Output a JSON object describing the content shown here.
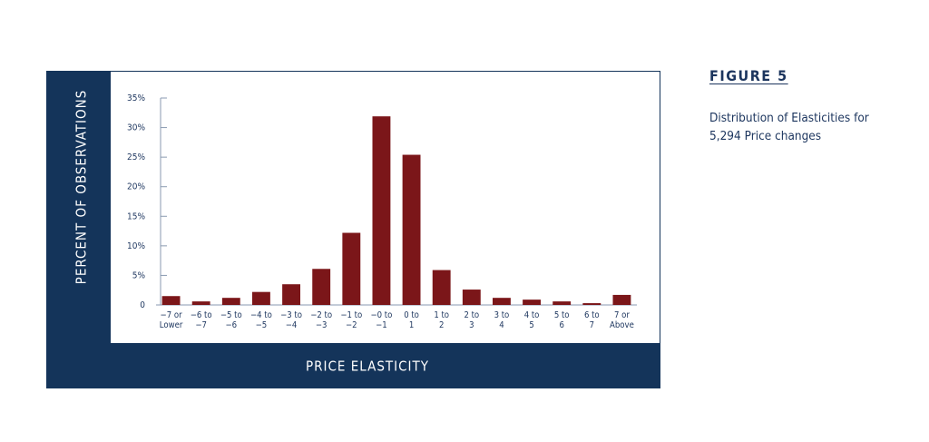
{
  "figure_label": "FIGURE 5",
  "caption": "Distribution of Elasticities for\n5,294 Price changes",
  "chart_data": {
    "type": "bar",
    "ylabel": "PERCENT OF OBSERVATIONS",
    "xlabel": "PRICE ELASTICITY",
    "categories": [
      "−7 or\nLower",
      "−6 to\n−7",
      "−5 to\n−6",
      "−4 to\n−5",
      "−3 to\n−4",
      "−2 to\n−3",
      "−1 to\n−2",
      "−0 to\n−1",
      "0 to\n1",
      "1 to\n2",
      "2 to\n3",
      "3 to\n4",
      "4 to\n5",
      "5 to\n6",
      "6 to\n7",
      "7 or\nAbove"
    ],
    "values": [
      1.5,
      0.6,
      1.2,
      2.2,
      3.5,
      6.1,
      12.2,
      31.9,
      25.4,
      5.9,
      2.6,
      1.2,
      0.9,
      0.6,
      0.3,
      1.7
    ],
    "color": "#7b1619",
    "ylim": [
      0,
      35
    ],
    "yticks": [
      0,
      {
        "value": 5,
        "label": "5%"
      },
      {
        "value": 10,
        "label": "10%"
      },
      {
        "value": 15,
        "label": "15%"
      },
      {
        "value": 20,
        "label": "20%"
      },
      {
        "value": 25,
        "label": "25%"
      },
      {
        "value": 30,
        "label": "30%"
      },
      {
        "value": 35,
        "label": "35%"
      }
    ],
    "grid": false
  }
}
